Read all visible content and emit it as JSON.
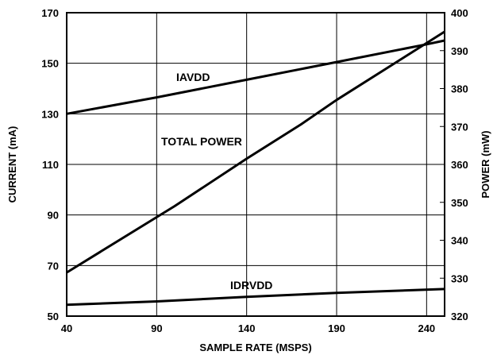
{
  "chart_data": {
    "type": "line",
    "xlabel": "SAMPLE RATE (MSPS)",
    "ylabel_left": "CURRENT (mA)",
    "ylabel_right": "POWER (mW)",
    "xlim": [
      40,
      250
    ],
    "ylim_left": [
      50,
      170
    ],
    "ylim_right": [
      320,
      400
    ],
    "x_ticks": [
      40,
      90,
      140,
      190,
      240
    ],
    "y_ticks_left": [
      50,
      70,
      90,
      110,
      130,
      150,
      170
    ],
    "y_ticks_right": [
      320,
      330,
      340,
      350,
      360,
      370,
      380,
      390,
      400
    ],
    "grid": true,
    "series": [
      {
        "name": "IAVDD",
        "axis": "left",
        "x": [
          40,
          90,
          140,
          190,
          240,
          250
        ],
        "y": [
          130,
          136.5,
          143.5,
          150.5,
          157.5,
          159
        ]
      },
      {
        "name": "TOTAL POWER",
        "axis": "right",
        "x": [
          40,
          100,
          140,
          170,
          190,
          250
        ],
        "y": [
          331.5,
          349,
          361.5,
          370.5,
          377,
          395
        ]
      },
      {
        "name": "IDRVDD",
        "axis": "left",
        "x": [
          40,
          90,
          140,
          190,
          250
        ],
        "y": [
          54.5,
          55.8,
          57.6,
          59.2,
          60.7
        ]
      }
    ]
  }
}
